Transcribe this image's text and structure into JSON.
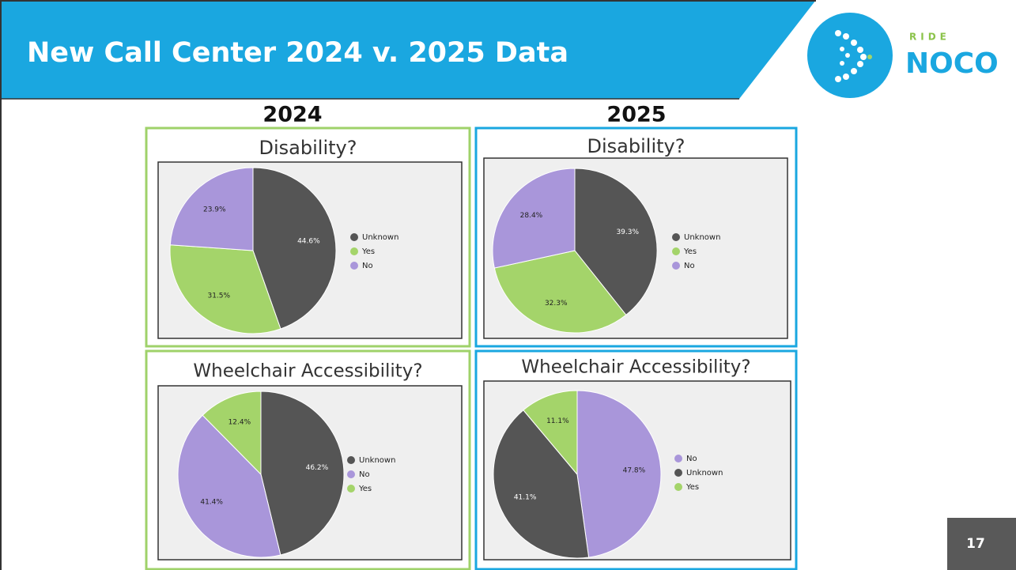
{
  "header": {
    "title": "New Call Center 2024 v. 2025 Data",
    "logo_small": "RIDE",
    "logo_large": "NOCO"
  },
  "columns": [
    "2024",
    "2025"
  ],
  "page_number": "17",
  "chart_data": [
    {
      "type": "pie",
      "title": "Disability?",
      "categories": [
        "Unknown",
        "Yes",
        "No"
      ],
      "values": [
        44.6,
        31.5,
        23.9
      ],
      "value_labels": [
        "44.6%",
        "31.5%",
        "23.9%"
      ],
      "colors": [
        "#555555",
        "#a4d46a",
        "#a996da"
      ]
    },
    {
      "type": "pie",
      "title": "Disability?",
      "categories": [
        "Unknown",
        "Yes",
        "No"
      ],
      "values": [
        39.3,
        32.3,
        28.4
      ],
      "value_labels": [
        "39.3%",
        "32.3%",
        "28.4%"
      ],
      "colors": [
        "#555555",
        "#a4d46a",
        "#a996da"
      ]
    },
    {
      "type": "pie",
      "title": "Wheelchair Accessibility?",
      "categories": [
        "Unknown",
        "No",
        "Yes"
      ],
      "values": [
        46.2,
        41.4,
        12.4
      ],
      "value_labels": [
        "46.2%",
        "41.4%",
        "12.4%"
      ],
      "colors": [
        "#555555",
        "#a996da",
        "#a4d46a"
      ]
    },
    {
      "type": "pie",
      "title": "Wheelchair Accessibility?",
      "categories": [
        "No",
        "Unknown",
        "Yes"
      ],
      "values": [
        47.8,
        41.1,
        11.1
      ],
      "value_labels": [
        "47.8%",
        "41.1%",
        "11.1%"
      ],
      "colors": [
        "#a996da",
        "#555555",
        "#a4d46a"
      ]
    }
  ]
}
